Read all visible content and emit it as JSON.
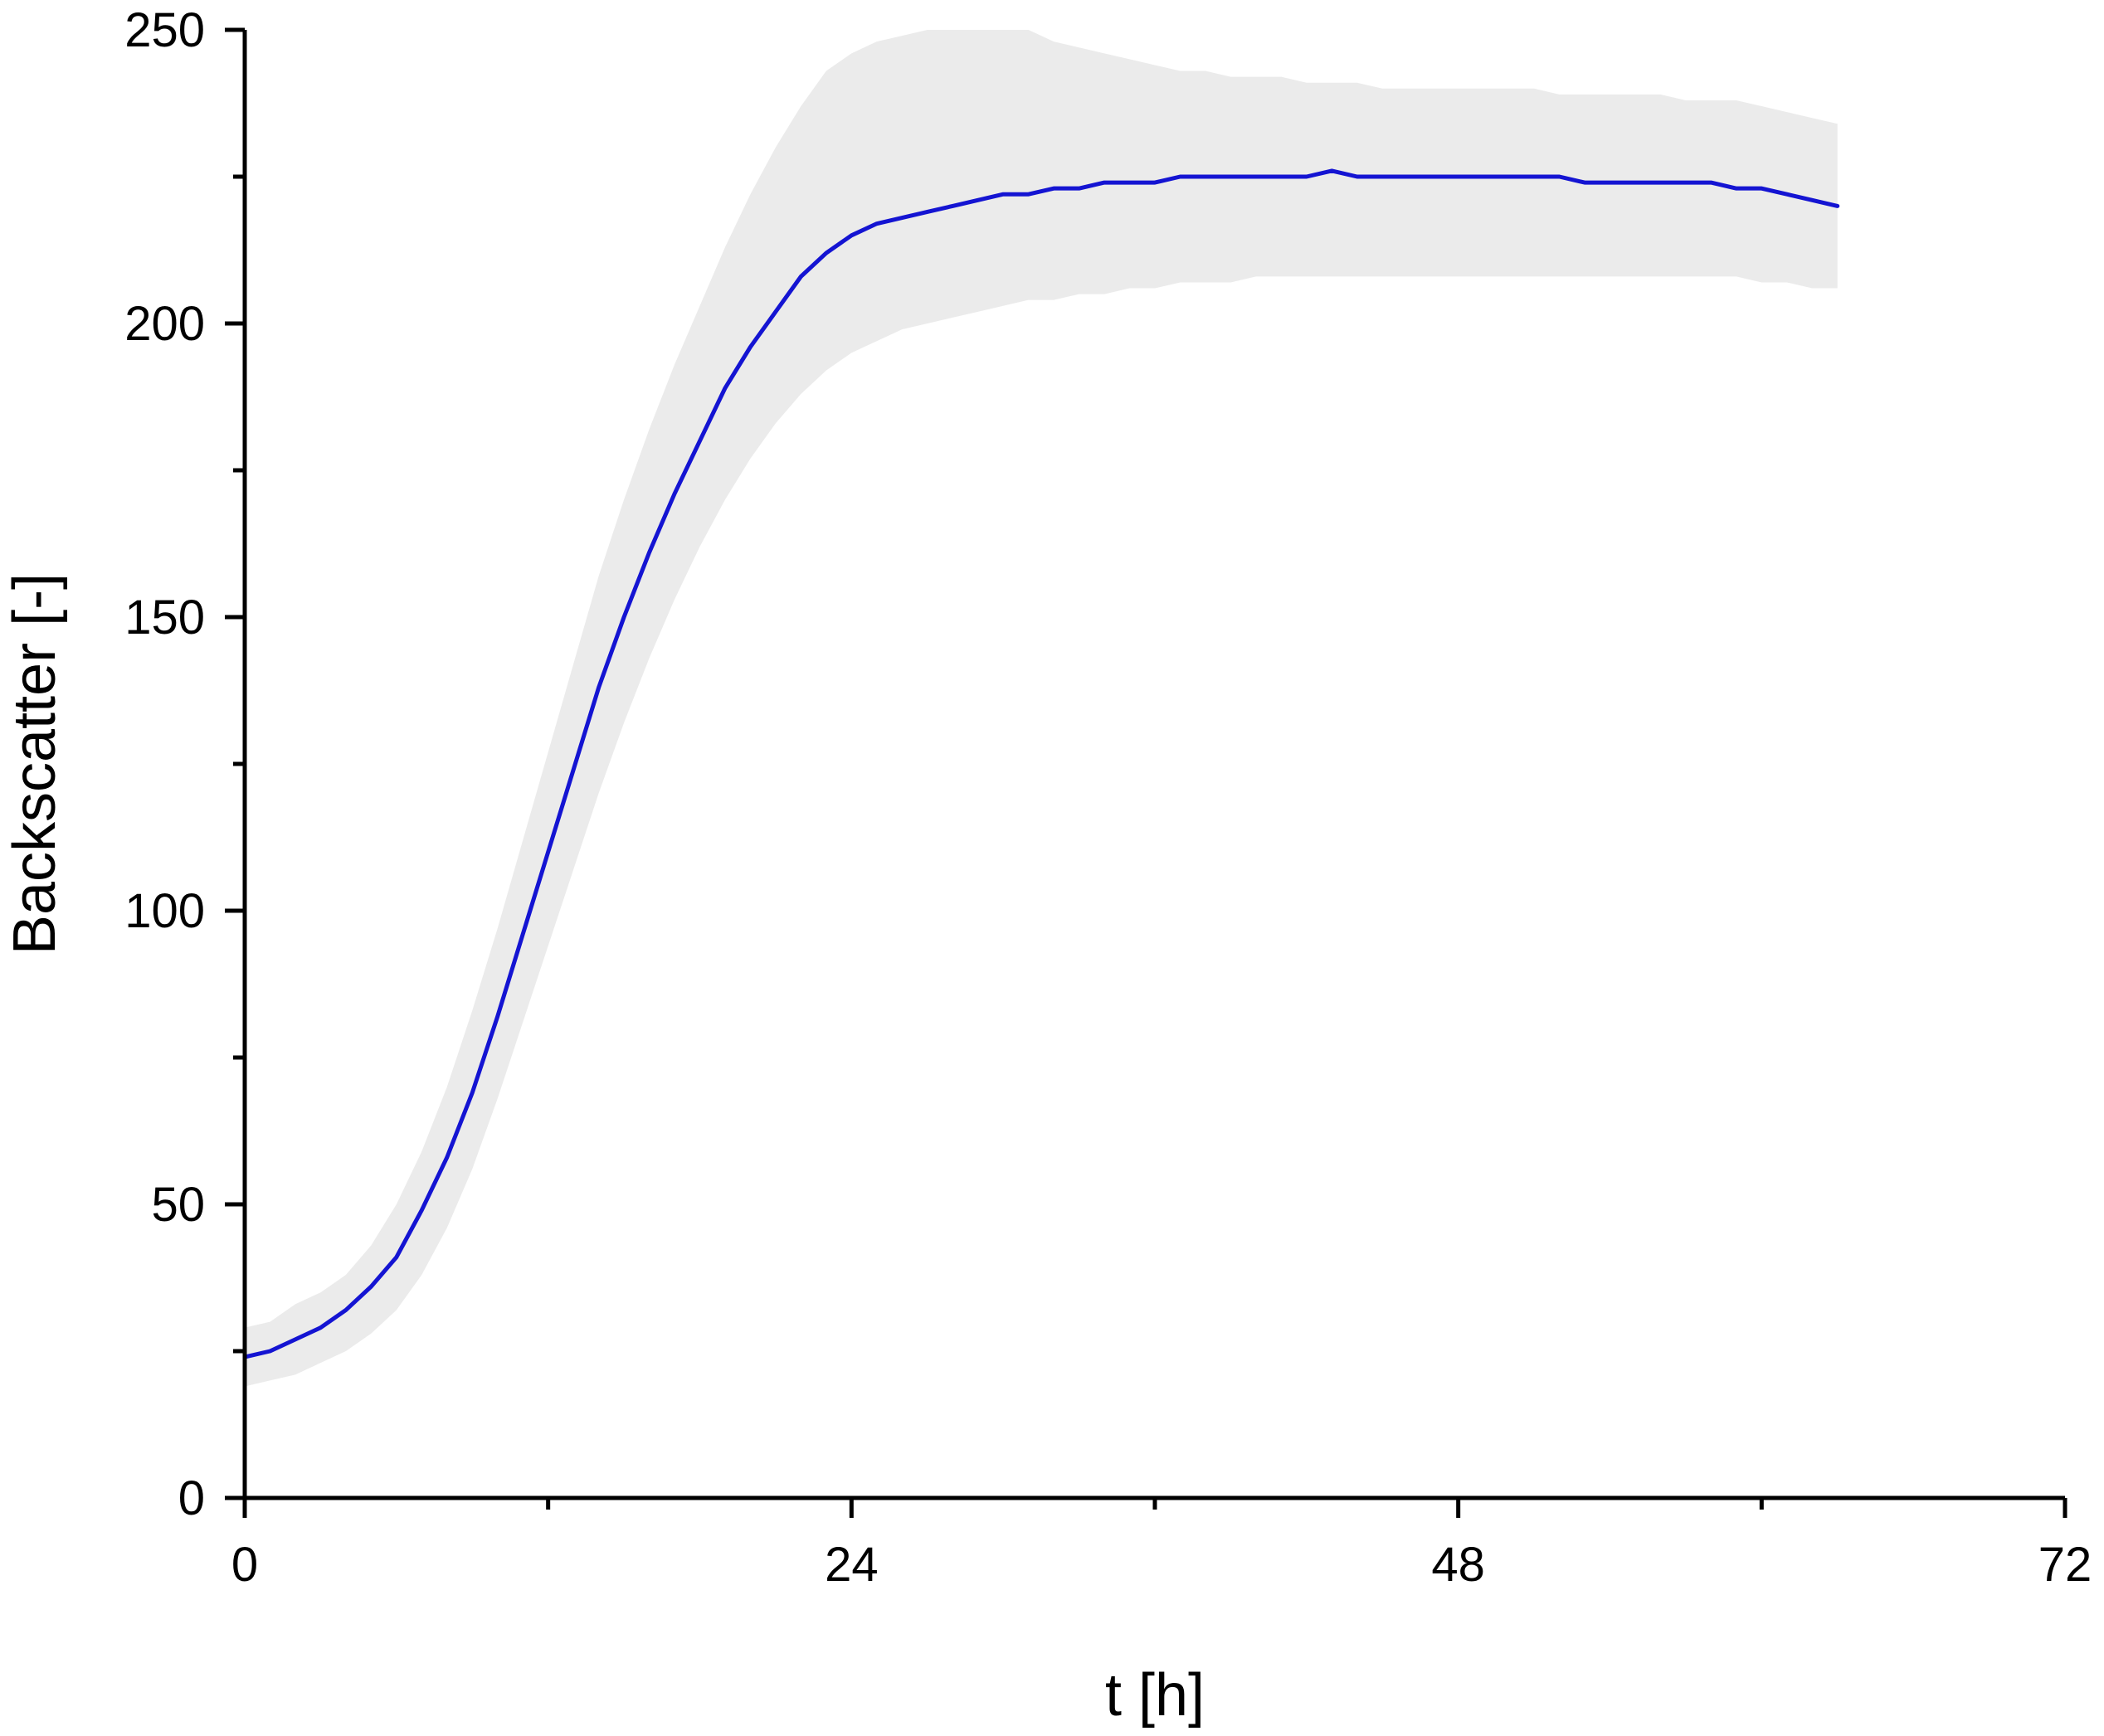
{
  "colors": {
    "line": "#1414d2",
    "band": "#ebebeb",
    "axis": "#000000",
    "background": "#ffffff"
  },
  "chart_data": {
    "type": "line",
    "title": "",
    "xlabel": "t [h]",
    "ylabel": "Backscatter [-]",
    "xlim": [
      0,
      72
    ],
    "ylim": [
      0,
      250
    ],
    "xticks": [
      "0",
      "24",
      "48",
      "72"
    ],
    "yticks": [
      "0",
      "50",
      "100",
      "150",
      "200",
      "250"
    ],
    "x_minor_ticks": [
      12,
      36,
      60
    ],
    "y_minor_ticks": [
      25,
      75,
      125,
      175,
      225
    ],
    "grid": false,
    "legend": "none",
    "series": [
      {
        "x": [
          0,
          1,
          2,
          3,
          4,
          5,
          6,
          7,
          8,
          9,
          10,
          11,
          12,
          13,
          14,
          15,
          16,
          17,
          18,
          19,
          20,
          21,
          22,
          23,
          24,
          25,
          26,
          27,
          28,
          29,
          30,
          31,
          32,
          33,
          34,
          35,
          36,
          37,
          38,
          39,
          40,
          41,
          42,
          43,
          44,
          45,
          46,
          47,
          48,
          49,
          50,
          51,
          52,
          53,
          54,
          55,
          56,
          57,
          58,
          59,
          60,
          61,
          62,
          63
        ],
        "y": [
          24,
          25,
          27,
          29,
          32,
          36,
          41,
          49,
          58,
          69,
          82,
          96,
          110,
          124,
          138,
          150,
          161,
          171,
          180,
          189,
          196,
          202,
          208,
          212,
          215,
          217,
          218,
          219,
          220,
          221,
          222,
          222,
          223,
          223,
          224,
          224,
          224,
          225,
          225,
          225,
          225,
          225,
          225,
          226,
          225,
          225,
          225,
          225,
          225,
          225,
          225,
          225,
          225,
          224,
          224,
          224,
          224,
          224,
          224,
          223,
          223,
          222,
          221,
          220
        ],
        "lower": [
          19,
          20,
          21,
          23,
          25,
          28,
          32,
          38,
          46,
          56,
          68,
          81,
          94,
          107,
          120,
          132,
          143,
          153,
          162,
          170,
          177,
          183,
          188,
          192,
          195,
          197,
          199,
          200,
          201,
          202,
          203,
          204,
          204,
          205,
          205,
          206,
          206,
          207,
          207,
          207,
          208,
          208,
          208,
          208,
          208,
          208,
          208,
          208,
          208,
          208,
          208,
          208,
          208,
          208,
          208,
          208,
          208,
          208,
          208,
          208,
          207,
          207,
          206,
          206
        ],
        "upper": [
          29,
          30,
          33,
          35,
          38,
          43,
          50,
          59,
          70,
          83,
          97,
          112,
          127,
          142,
          157,
          170,
          182,
          193,
          203,
          213,
          222,
          230,
          237,
          243,
          246,
          248,
          249,
          250,
          250,
          250,
          250,
          250,
          248,
          247,
          246,
          245,
          244,
          243,
          243,
          242,
          242,
          242,
          241,
          241,
          241,
          240,
          240,
          240,
          240,
          240,
          240,
          240,
          239,
          239,
          239,
          239,
          239,
          238,
          238,
          238,
          237,
          236,
          235,
          234
        ]
      }
    ]
  }
}
